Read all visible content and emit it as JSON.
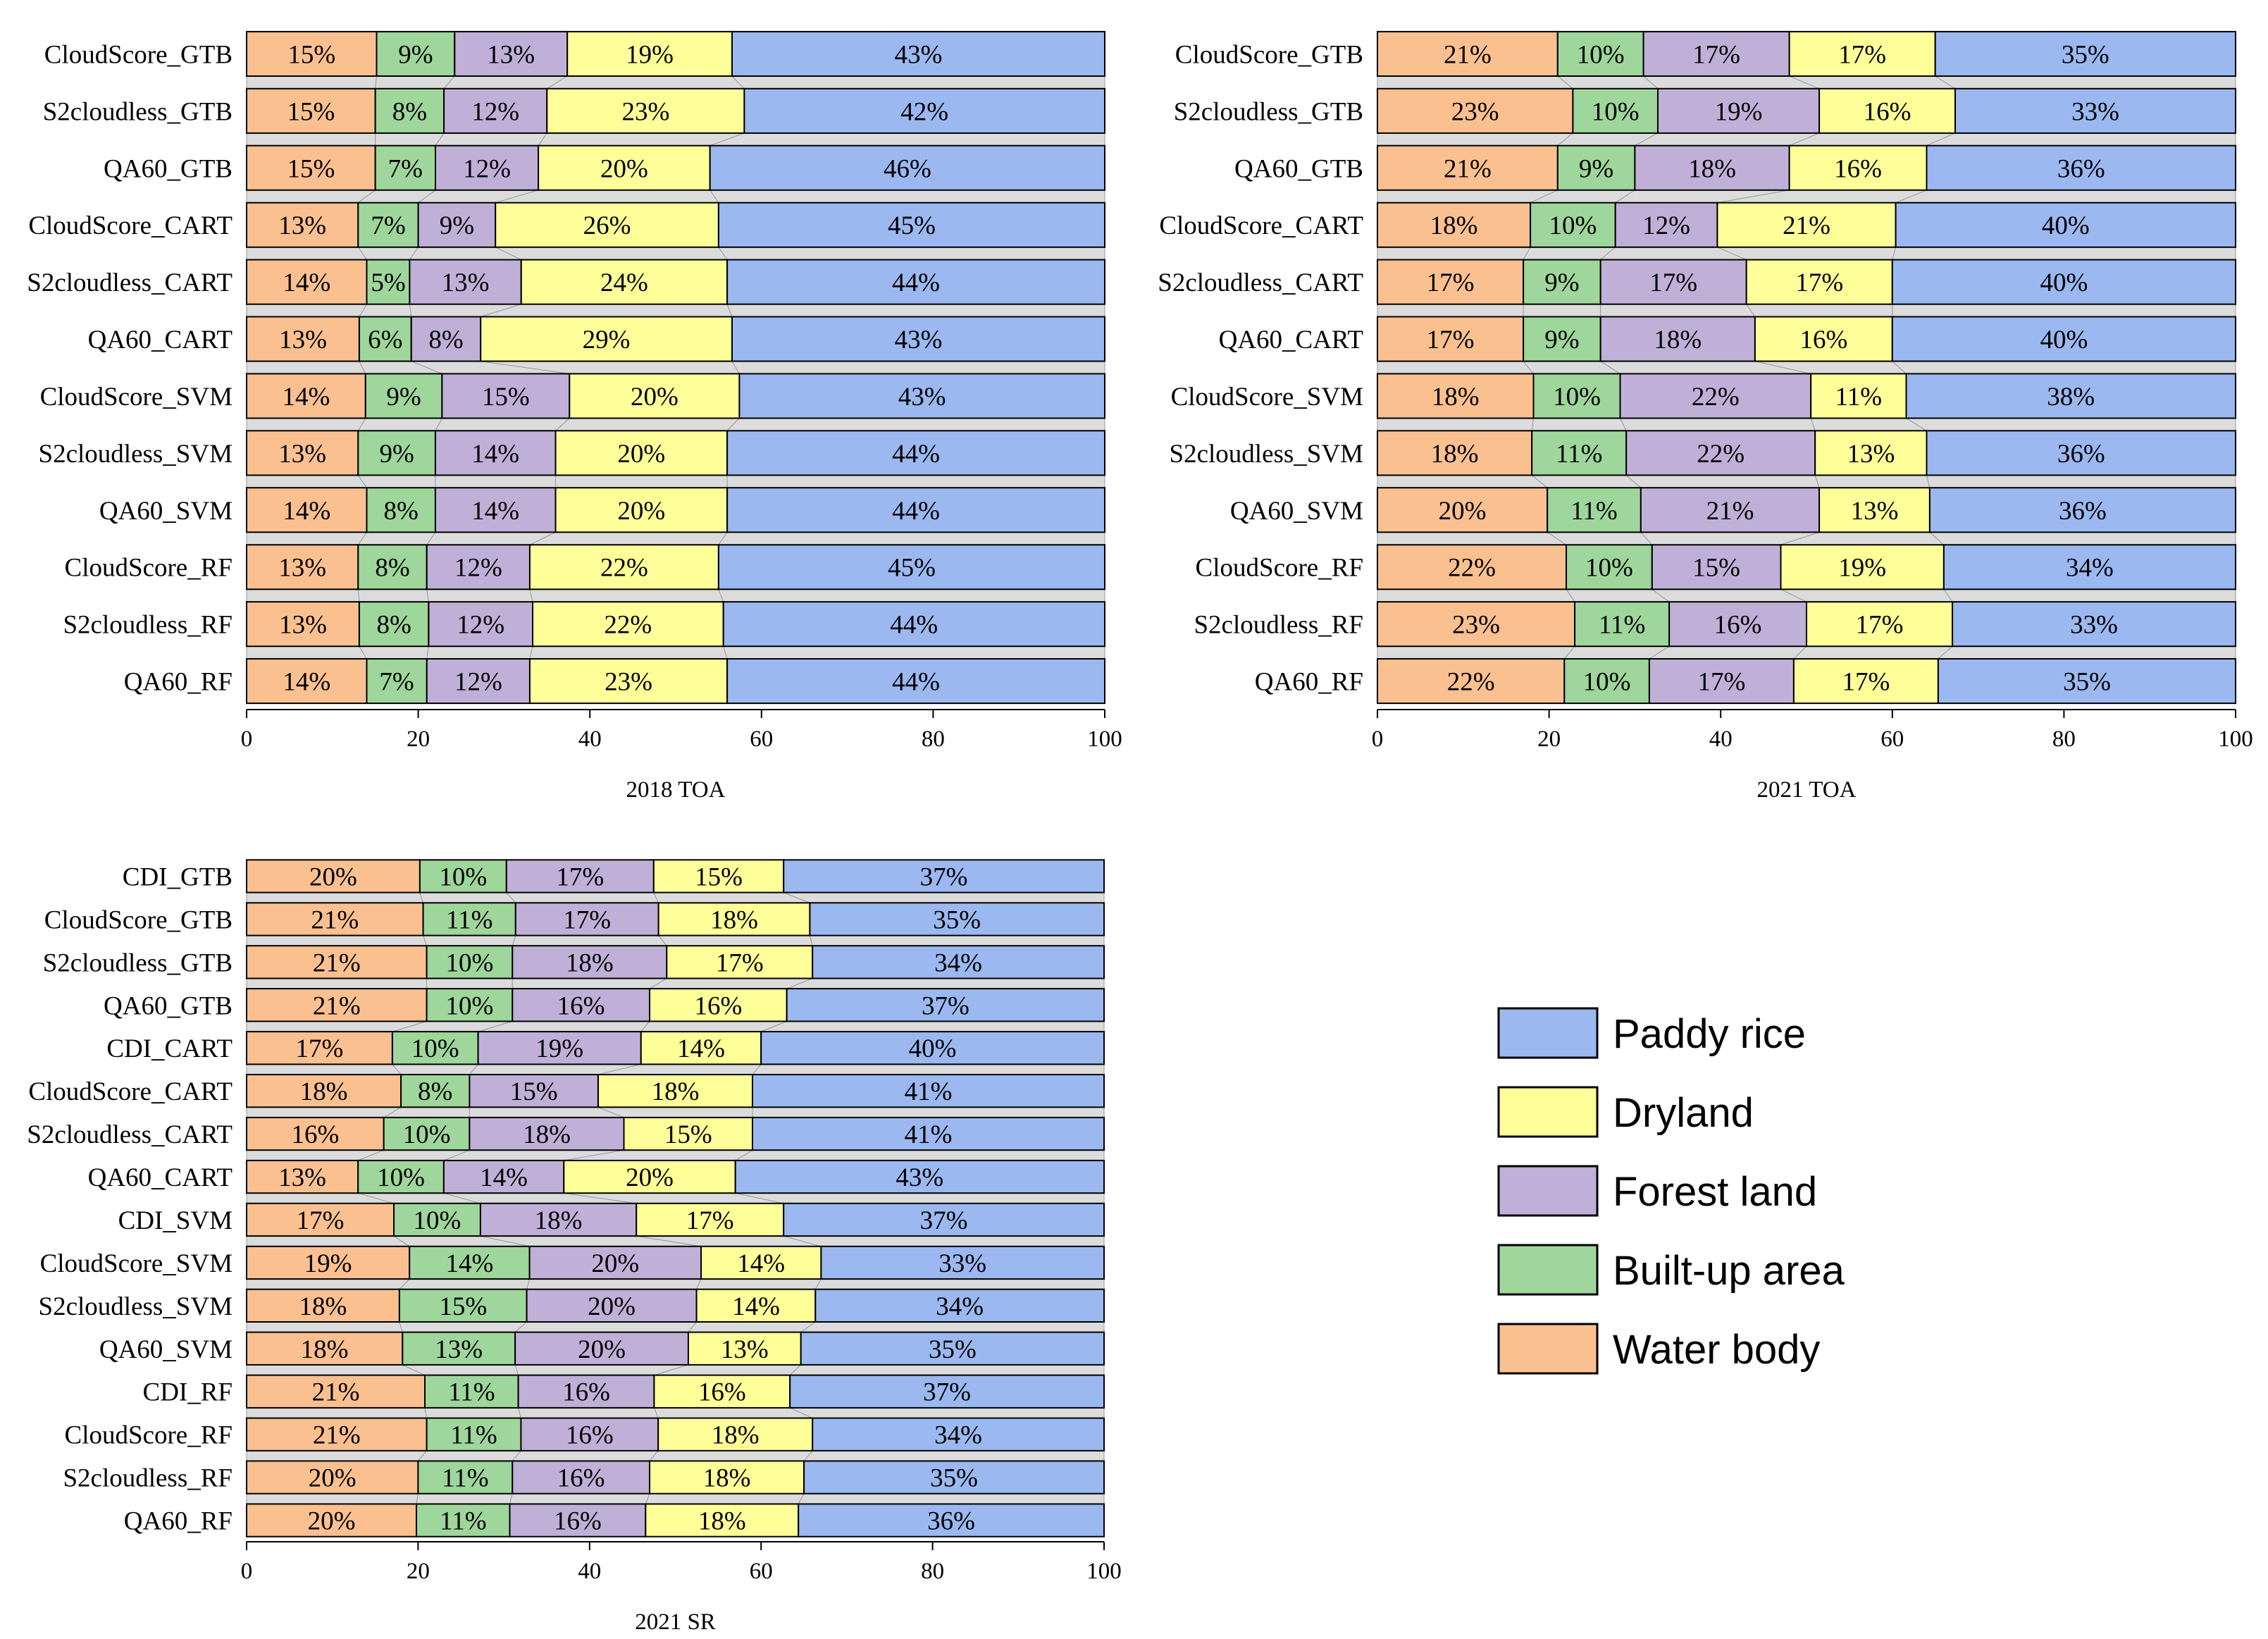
{
  "legend": {
    "order": [
      "Paddy rice",
      "Dryland",
      "Forest land",
      "Built-up area",
      "Water body"
    ]
  },
  "colors": {
    "Water body": "#FAC090",
    "Built-up area": "#9ED69B",
    "Forest land": "#C0B0D8",
    "Dryland": "#FFFF99",
    "Paddy rice": "#9BB8F0",
    "connector": "#dcdcdc",
    "stroke": "#000000"
  },
  "chart_data": [
    {
      "type": "bar",
      "orientation": "horizontal",
      "stacked": true,
      "title": "",
      "xlabel": "2018 TOA",
      "ylabel": "",
      "xlim": [
        0,
        100
      ],
      "xticks": [
        0,
        20,
        40,
        60,
        80,
        100
      ],
      "categories": [
        "CloudScore_GTB",
        "S2cloudless_GTB",
        "QA60_GTB",
        "CloudScore_CART",
        "S2cloudless_CART",
        "QA60_CART",
        "CloudScore_SVM",
        "S2cloudless_SVM",
        "QA60_SVM",
        "CloudScore_RF",
        "S2cloudless_RF",
        "QA60_RF"
      ],
      "series": [
        {
          "name": "Water body",
          "values": [
            15,
            15,
            15,
            13,
            14,
            13,
            14,
            13,
            14,
            13,
            13,
            14
          ]
        },
        {
          "name": "Built-up area",
          "values": [
            9,
            8,
            7,
            7,
            5,
            6,
            9,
            9,
            8,
            8,
            8,
            7
          ]
        },
        {
          "name": "Forest land",
          "values": [
            13,
            12,
            12,
            9,
            13,
            8,
            15,
            14,
            14,
            12,
            12,
            12
          ]
        },
        {
          "name": "Dryland",
          "values": [
            19,
            23,
            20,
            26,
            24,
            29,
            20,
            20,
            20,
            22,
            22,
            23
          ]
        },
        {
          "name": "Paddy rice",
          "values": [
            43,
            42,
            46,
            45,
            44,
            43,
            43,
            44,
            44,
            45,
            44,
            44
          ]
        }
      ]
    },
    {
      "type": "bar",
      "orientation": "horizontal",
      "stacked": true,
      "title": "",
      "xlabel": "2021 TOA",
      "ylabel": "",
      "xlim": [
        0,
        100
      ],
      "xticks": [
        0,
        20,
        40,
        60,
        80,
        100
      ],
      "categories": [
        "CloudScore_GTB",
        "S2cloudless_GTB",
        "QA60_GTB",
        "CloudScore_CART",
        "S2cloudless_CART",
        "QA60_CART",
        "CloudScore_SVM",
        "S2cloudless_SVM",
        "QA60_SVM",
        "CloudScore_RF",
        "S2cloudless_RF",
        "QA60_RF"
      ],
      "series": [
        {
          "name": "Water body",
          "values": [
            21,
            23,
            21,
            18,
            17,
            17,
            18,
            18,
            20,
            22,
            23,
            22
          ]
        },
        {
          "name": "Built-up area",
          "values": [
            10,
            10,
            9,
            10,
            9,
            9,
            10,
            11,
            11,
            10,
            11,
            10
          ]
        },
        {
          "name": "Forest land",
          "values": [
            17,
            19,
            18,
            12,
            17,
            18,
            22,
            22,
            21,
            15,
            16,
            17
          ]
        },
        {
          "name": "Dryland",
          "values": [
            17,
            16,
            16,
            21,
            17,
            16,
            11,
            13,
            13,
            19,
            17,
            17
          ]
        },
        {
          "name": "Paddy rice",
          "values": [
            35,
            33,
            36,
            40,
            40,
            40,
            38,
            36,
            36,
            34,
            33,
            35
          ]
        }
      ]
    },
    {
      "type": "bar",
      "orientation": "horizontal",
      "stacked": true,
      "title": "",
      "xlabel": "2021 SR",
      "ylabel": "",
      "xlim": [
        0,
        100
      ],
      "xticks": [
        0,
        20,
        40,
        60,
        80,
        100
      ],
      "categories": [
        "CDI_GTB",
        "CloudScore_GTB",
        "S2cloudless_GTB",
        "QA60_GTB",
        "CDI_CART",
        "CloudScore_CART",
        "S2cloudless_CART",
        "QA60_CART",
        "CDI_SVM",
        "CloudScore_SVM",
        "S2cloudless_SVM",
        "QA60_SVM",
        "CDI_RF",
        "CloudScore_RF",
        "S2cloudless_RF",
        "QA60_RF"
      ],
      "series": [
        {
          "name": "Water body",
          "values": [
            20,
            21,
            21,
            21,
            17,
            18,
            16,
            13,
            17,
            19,
            18,
            18,
            21,
            21,
            20,
            20
          ]
        },
        {
          "name": "Built-up area",
          "values": [
            10,
            11,
            10,
            10,
            10,
            8,
            10,
            10,
            10,
            14,
            15,
            13,
            11,
            11,
            11,
            11
          ]
        },
        {
          "name": "Forest land",
          "values": [
            17,
            17,
            18,
            16,
            19,
            15,
            18,
            14,
            18,
            20,
            20,
            20,
            16,
            16,
            16,
            16
          ]
        },
        {
          "name": "Dryland",
          "values": [
            15,
            18,
            17,
            16,
            14,
            18,
            15,
            20,
            17,
            14,
            14,
            13,
            16,
            18,
            18,
            18
          ]
        },
        {
          "name": "Paddy rice",
          "values": [
            37,
            35,
            34,
            37,
            40,
            41,
            41,
            43,
            37,
            33,
            34,
            35,
            37,
            34,
            35,
            36
          ]
        }
      ]
    }
  ]
}
